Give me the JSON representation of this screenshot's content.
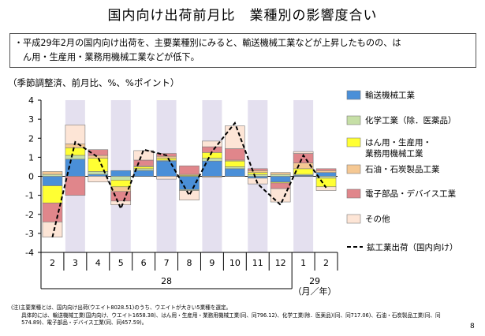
{
  "page": {
    "title": "国内向け出荷前月比　業種別の影響度合い",
    "summary_bullet": "・",
    "summary_line1": "平成29年2月の国内向け出荷を、主要業種別にみると、輸送機械工業などが上昇したものの、は",
    "summary_line2": "ん用・生産用・業務用機械工業などが低下。",
    "units_label": "（季節調整済、前月比、%、%ポイント）",
    "notes": [
      "(注)主要業種とは、国内向け出荷(ウエイト8028.51)のうち、ウエイトが大きい5業種を選定。",
      "　　具体的には、輸送機械工業(国内向け、ウエイト1658.38)、はん用・生産用・業務用機械工業(同、同796.12)、化学工業(除．医薬品)(同、同717.06)、石油・石炭製品工業(同、同",
      "　　574.89)、電子部品・デバイス工業(同、同457.59)。"
    ],
    "page_number": "8"
  },
  "chart_data": {
    "type": "bar",
    "stacked": true,
    "categories": [
      "2",
      "3",
      "4",
      "5",
      "6",
      "7",
      "8",
      "9",
      "10",
      "11",
      "12",
      "1",
      "2"
    ],
    "year_labels": [
      "28",
      "29"
    ],
    "axis_unit_label": "（月／年）",
    "ylim": [
      -4,
      4
    ],
    "yticks": [
      4,
      3,
      2,
      1,
      0,
      -1,
      -2,
      -3,
      -4
    ],
    "shaded_categories_index": [
      1,
      3,
      5,
      7,
      9,
      11
    ],
    "series": [
      {
        "name": "輸送機械工業",
        "color": "#4a8fd8",
        "values": [
          -0.5,
          0.9,
          0.1,
          0.3,
          0.3,
          0.8,
          -0.7,
          0.8,
          0.4,
          -0.1,
          -0.3,
          0.05,
          0.2
        ]
      },
      {
        "name": "化学工業（除．医薬品）",
        "color": "#c6dfa6",
        "values": [
          0.1,
          0.2,
          0.15,
          -0.2,
          0.1,
          0.05,
          -0.05,
          0.15,
          0.1,
          0.1,
          0.1,
          0.05,
          -0.1
        ]
      },
      {
        "name": "はん用・生産用・\n業務用機械工業",
        "color": "#ffff33",
        "values": [
          -0.9,
          0.4,
          0.7,
          -0.35,
          0.1,
          0.1,
          0.05,
          0.3,
          0.3,
          0.1,
          -0.05,
          0.3,
          -0.45
        ]
      },
      {
        "name": "石油・石炭製品工業",
        "color": "#f5c893",
        "values": [
          0.15,
          0.2,
          0.15,
          -0.25,
          0.05,
          0.1,
          0.05,
          -0.05,
          0.05,
          0.1,
          0.1,
          0.3,
          0.1
        ]
      },
      {
        "name": "電子部品・デバイス工業",
        "color": "#e0868b",
        "values": [
          -1,
          -1,
          0.3,
          -0.5,
          0.3,
          0.15,
          0.45,
          0.3,
          0.6,
          0.1,
          -0.3,
          0.5,
          0.1
        ]
      },
      {
        "name": "その他",
        "color": "#fde5d6",
        "values": [
          -0.8,
          1.0,
          -0.3,
          -0.2,
          0.5,
          -0.15,
          -0.5,
          0.3,
          1.2,
          -0.3,
          -0.7,
          0.1,
          -0.2
        ]
      }
    ],
    "line_series": {
      "name": "鉱工業出荷（国内向け）",
      "values": [
        -3.2,
        1.8,
        1.0,
        -1.7,
        1.4,
        1.1,
        -1.0,
        1.3,
        2.8,
        -0.4,
        -1.5,
        1.1,
        -0.6
      ]
    }
  }
}
